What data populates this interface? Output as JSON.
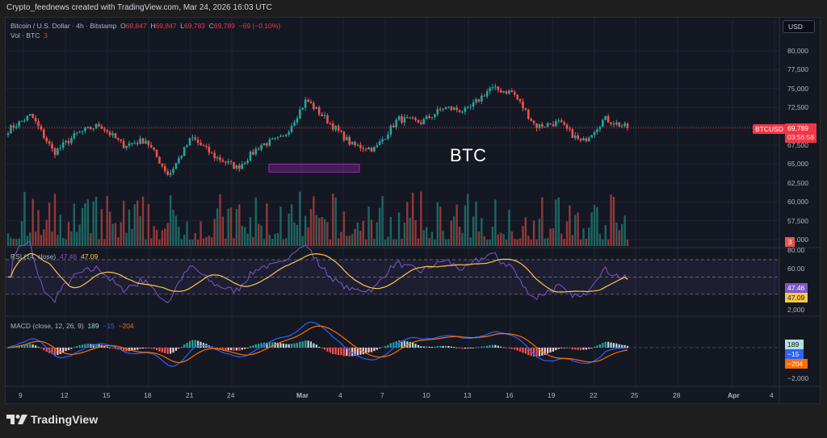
{
  "caption": "Crypto_feednews created with TradingView.com, Mar 24, 2026 16:03 UTC",
  "header": {
    "symbol": "Bitcoin / U.S. Dollar · 4h · Bitstamp",
    "o_label": "O",
    "o": "69,847",
    "h_label": "H",
    "h": "69,847",
    "l_label": "L",
    "l": "69,783",
    "c_label": "C",
    "c": "69,789",
    "change": "−69 (−0.10%)",
    "vol_label": "Vol · BTC",
    "vol": "3",
    "currency_button": "USD"
  },
  "annotation": {
    "text": "BTC"
  },
  "price_tags": {
    "symbol": "BTCUSD",
    "last_price": "69,789",
    "countdown": "03:56:58",
    "volume": "3"
  },
  "rsi": {
    "title": "RSI (14, close)",
    "value": "47.46",
    "ma_value": "47.09",
    "axis": [
      "80.00",
      "60.00"
    ],
    "tag_rsi": "47.46",
    "tag_ma": "47.09"
  },
  "macd": {
    "title": "MACD (close, 12, 26, 9)",
    "hist": "189",
    "macd": "−15",
    "signal": "−204",
    "axis": [
      "2,000",
      "−2,000"
    ],
    "tag_hist": "189",
    "tag_macd": "−15",
    "tag_signal": "−204"
  },
  "branding": {
    "logo_text": "TradingView"
  },
  "colors": {
    "up": "#26a69a",
    "down": "#ef5350",
    "bg": "#141823",
    "rsi": "#7e57c2",
    "rsi_ma": "#f7c948",
    "macd": "#2962ff",
    "signal": "#ff6d00",
    "last_price": "#f23645"
  },
  "chart_data": {
    "type": "candlestick",
    "title": "Bitcoin / U.S. Dollar · 4h · Bitstamp",
    "xlabel": "",
    "ylabel": "USD",
    "ylim": [
      55000,
      82000
    ],
    "y_ticks": [
      "80,000",
      "77,500",
      "75,000",
      "72,500",
      "67,500",
      "65,000",
      "62,500",
      "60,000",
      "57,500",
      "55,000"
    ],
    "x_ticks": [
      "9",
      "12",
      "15",
      "18",
      "21",
      "24",
      "Mar",
      "4",
      "7",
      "10",
      "13",
      "16",
      "19",
      "22",
      "25",
      "28",
      "Apr",
      "4"
    ],
    "last_price": 69789,
    "ohlc_last": {
      "open": 69847,
      "high": 69847,
      "low": 69783,
      "close": 69789
    },
    "price_path_approx": [
      {
        "x": "Feb 8",
        "close": 69500
      },
      {
        "x": "Feb 9",
        "close": 71500
      },
      {
        "x": "Feb 11",
        "close": 66500
      },
      {
        "x": "Feb 13",
        "close": 69000
      },
      {
        "x": "Feb 15",
        "close": 70200
      },
      {
        "x": "Feb 17",
        "close": 67500
      },
      {
        "x": "Feb 21",
        "close": 68200
      },
      {
        "x": "Feb 23",
        "close": 63500
      },
      {
        "x": "Feb 25",
        "close": 68500
      },
      {
        "x": "Feb 27",
        "close": 66000
      },
      {
        "x": "Feb 28",
        "close": 64500
      },
      {
        "x": "Mar 1",
        "close": 67500
      },
      {
        "x": "Mar 3",
        "close": 68500
      },
      {
        "x": "Mar 4",
        "close": 73500
      },
      {
        "x": "Mar 6",
        "close": 70500
      },
      {
        "x": "Mar 8",
        "close": 67500
      },
      {
        "x": "Mar 9",
        "close": 67000
      },
      {
        "x": "Mar 11",
        "close": 71000
      },
      {
        "x": "Mar 13",
        "close": 70500
      },
      {
        "x": "Mar 14",
        "close": 72500
      },
      {
        "x": "Mar 16",
        "close": 72000
      },
      {
        "x": "Mar 17",
        "close": 75000
      },
      {
        "x": "Mar 18",
        "close": 74500
      },
      {
        "x": "Mar 19",
        "close": 70000
      },
      {
        "x": "Mar 21",
        "close": 70500
      },
      {
        "x": "Mar 22",
        "close": 67800
      },
      {
        "x": "Mar 23",
        "close": 71000
      },
      {
        "x": "Mar 24",
        "close": 69789
      }
    ],
    "highlight_box": {
      "from": "Feb 27",
      "to": "Mar 5",
      "price_low": 64000,
      "price_high": 65000,
      "color": "#9c27b0"
    },
    "indicators": {
      "volume": {
        "last": 3,
        "unit": "BTC"
      },
      "rsi": {
        "period": 14,
        "value": 47.46,
        "ma": 47.09,
        "levels": [
          70,
          50,
          30
        ],
        "ylim": [
          20,
          80
        ]
      },
      "macd": {
        "fast": 12,
        "slow": 26,
        "signal": 9,
        "histogram": 189,
        "macd": -15,
        "signal_line": -204,
        "ylim": [
          -2500,
          2500
        ]
      }
    }
  }
}
